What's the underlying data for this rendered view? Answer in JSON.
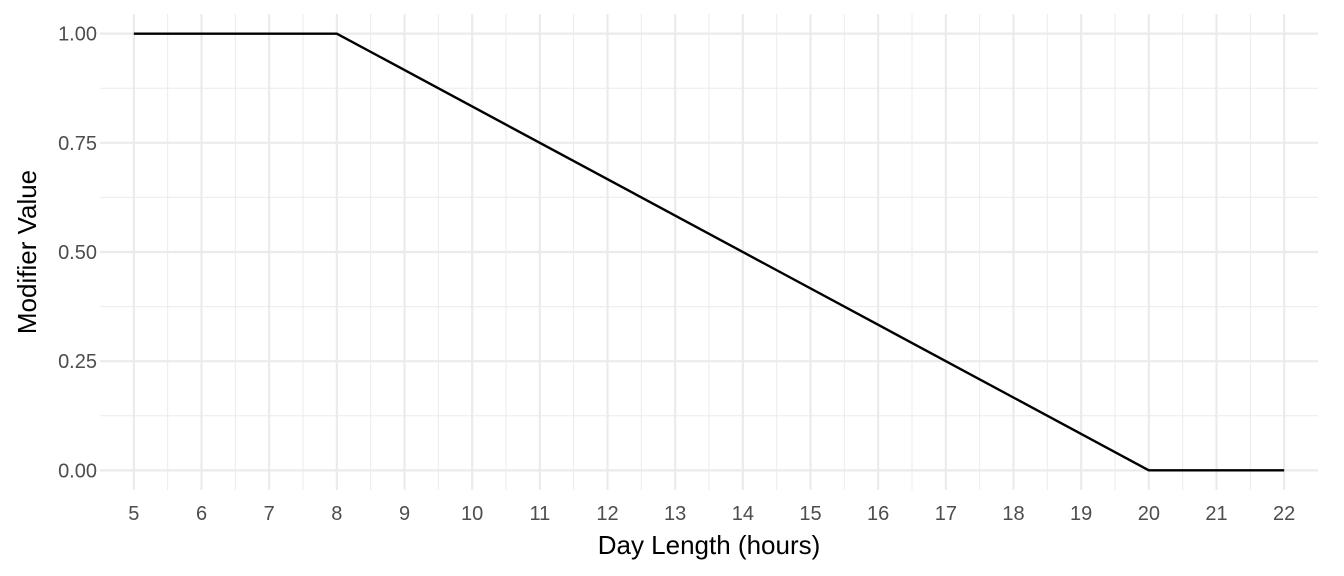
{
  "chart_data": {
    "type": "line",
    "title": "",
    "xlabel": "Day Length (hours)",
    "ylabel": "Modifier Value",
    "xlim": [
      4.5,
      22.5
    ],
    "ylim": [
      -0.045,
      1.045
    ],
    "x_ticks": [
      5,
      6,
      7,
      8,
      9,
      10,
      11,
      12,
      13,
      14,
      15,
      16,
      17,
      18,
      19,
      20,
      21,
      22
    ],
    "x_tick_labels": [
      "5",
      "6",
      "7",
      "8",
      "9",
      "10",
      "11",
      "12",
      "13",
      "14",
      "15",
      "16",
      "17",
      "18",
      "19",
      "20",
      "21",
      "22"
    ],
    "y_ticks": [
      0,
      0.25,
      0.5,
      0.75,
      1
    ],
    "y_tick_labels": [
      "0.00",
      "0.25",
      "0.50",
      "0.75",
      "1.00"
    ],
    "grid": true,
    "legend": "none",
    "series": [
      {
        "color": "#000000",
        "x": [
          5,
          8,
          20,
          22
        ],
        "y": [
          1.0,
          1.0,
          0.0,
          0.0
        ]
      }
    ]
  }
}
